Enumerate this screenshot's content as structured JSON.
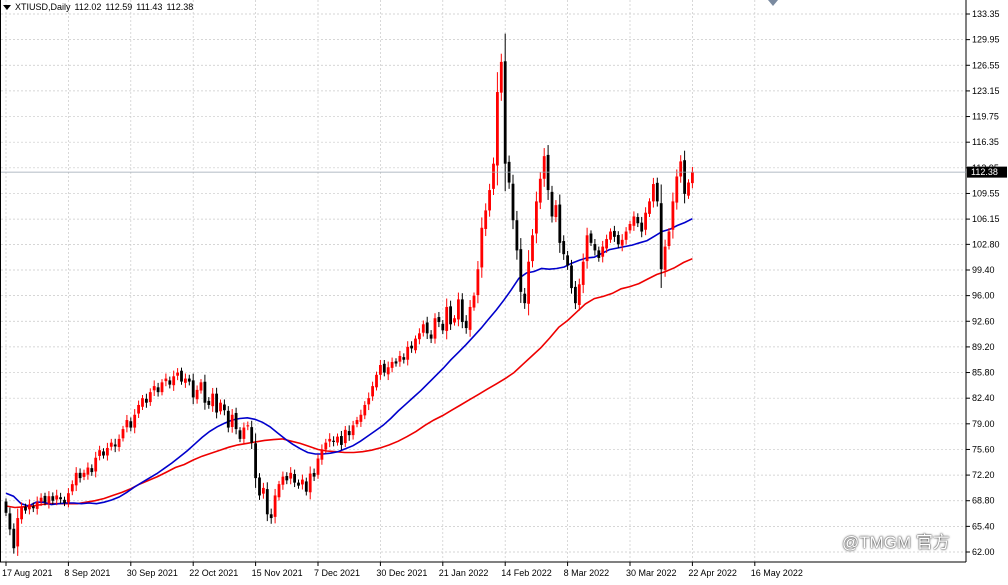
{
  "header": {
    "symbol": "XTIUSD,Daily",
    "ohlc": [
      "112.02",
      "112.59",
      "111.43",
      "112.38"
    ]
  },
  "watermark": "@TMGM 官方",
  "colors": {
    "bull": "#ff0000",
    "bear": "#000000",
    "ma_fast": "#0000cc",
    "ma_slow": "#ee0000",
    "grid": "#c8c8c8",
    "price_tag_bg": "#000000",
    "price_tag_text": "#ffffff"
  },
  "chart_data": {
    "type": "candlestick",
    "title": "XTIUSD,Daily",
    "current_price": 112.38,
    "y_ticks": [
      62.0,
      65.4,
      68.8,
      72.2,
      75.6,
      79.0,
      82.4,
      85.8,
      89.2,
      92.6,
      96.0,
      99.4,
      102.8,
      106.15,
      109.55,
      112.95,
      116.35,
      119.75,
      123.15,
      126.55,
      129.95,
      133.35
    ],
    "x_ticks": [
      {
        "label": "17 Aug 2021",
        "index": 0
      },
      {
        "label": "8 Sep 2021",
        "index": 16
      },
      {
        "label": "30 Sep 2021",
        "index": 32
      },
      {
        "label": "22 Oct 2021",
        "index": 48
      },
      {
        "label": "15 Nov 2021",
        "index": 64
      },
      {
        "label": "7 Dec 2021",
        "index": 80
      },
      {
        "label": "30 Dec 2021",
        "index": 96
      },
      {
        "label": "21 Jan 2022",
        "index": 112
      },
      {
        "label": "14 Feb 2022",
        "index": 128
      },
      {
        "label": "8 Mar 2022",
        "index": 144
      },
      {
        "label": "30 Mar 2022",
        "index": 160
      },
      {
        "label": "22 Apr 2022",
        "index": 176
      },
      {
        "label": "16 May 2022",
        "index": 192
      }
    ],
    "closes": [
      67.2,
      65.0,
      62.5,
      66.5,
      68.0,
      67.5,
      68.3,
      67.8,
      68.6,
      69.2,
      68.6,
      69.4,
      68.8,
      69.5,
      69.0,
      68.5,
      69.8,
      71.0,
      72.5,
      71.8,
      72.5,
      73.2,
      72.6,
      74.5,
      75.5,
      74.8,
      75.8,
      76.5,
      76.0,
      77.0,
      78.3,
      79.5,
      78.5,
      80.2,
      81.5,
      82.4,
      81.8,
      83.2,
      84.0,
      83.2,
      84.5,
      85.0,
      84.2,
      85.3,
      85.8,
      84.6,
      85.0,
      84.6,
      82.5,
      83.5,
      84.5,
      81.8,
      81.5,
      83.0,
      80.5,
      81.8,
      80.8,
      78.5,
      80.2,
      78.3,
      77.0,
      78.5,
      78.8,
      76.5,
      71.8,
      69.5,
      70.5,
      67.0,
      66.5,
      69.5,
      71.0,
      72.0,
      71.5,
      72.5,
      71.2,
      70.8,
      71.6,
      70.0,
      72.4,
      72.0,
      74.4,
      75.6,
      76.5,
      77.0,
      76.6,
      77.3,
      76.2,
      78.2,
      77.5,
      78.8,
      79.5,
      80.2,
      81.5,
      82.4,
      84.0,
      85.5,
      86.8,
      85.8,
      86.5,
      87.2,
      87.0,
      88.0,
      87.5,
      89.2,
      89.0,
      90.3,
      91.0,
      92.2,
      91.0,
      90.3,
      93.0,
      92.5,
      91.4,
      94.5,
      92.2,
      93.0,
      95.5,
      92.5,
      91.7,
      94.5,
      96.0,
      99.5,
      105.0,
      107.3,
      110.0,
      113.5,
      123.0,
      127.0,
      113.5,
      111.0,
      106.0,
      102.0,
      96.5,
      95.0,
      100.5,
      104.0,
      108.5,
      111.5,
      114.5,
      110.0,
      106.5,
      108.0,
      103.0,
      101.5,
      100.0,
      97.0,
      95.0,
      97.5,
      100.5,
      104.0,
      103.0,
      102.0,
      101.0,
      102.5,
      103.5,
      104.5,
      103.8,
      102.8,
      103.4,
      104.5,
      105.5,
      106.5,
      105.6,
      104.5,
      107.0,
      108.5,
      110.8,
      108.5,
      99.5,
      102.5,
      104.5,
      108.5,
      111.8,
      113.8,
      109.5,
      111.0,
      112.4
    ],
    "ma_fast": {
      "name": "",
      "values": [
        69.8,
        69.4,
        68.4,
        68.1,
        68.6,
        68.6,
        68.3,
        68.4,
        68.5,
        68.5,
        68.4,
        68.5,
        68.4,
        68.6,
        68.9,
        69.3,
        69.9,
        70.6,
        71.2,
        71.8,
        72.4,
        73.1,
        73.8,
        74.6,
        75.4,
        76.3,
        77.2,
        78.0,
        78.6,
        79.1,
        79.5,
        79.7,
        79.8,
        79.6,
        79.2,
        78.6,
        77.8,
        77.0,
        76.3,
        75.7,
        75.2,
        75.0,
        75.0,
        75.1,
        75.3,
        75.7,
        76.1,
        76.7,
        77.4,
        78.1,
        78.8,
        79.7,
        80.7,
        81.6,
        82.5,
        83.4,
        84.4,
        85.4,
        86.4,
        87.5,
        88.5,
        89.5,
        90.6,
        91.7,
        92.9,
        94.1,
        95.4,
        96.8,
        98.3,
        99.0,
        99.2,
        99.6,
        99.5,
        99.6,
        99.8,
        100.3,
        100.7,
        101.0,
        101.1,
        101.6,
        102.1,
        102.3,
        102.5,
        102.7,
        103.0,
        103.3,
        103.9,
        104.5,
        104.8,
        105.3,
        105.7,
        106.2
      ]
    },
    "ma_slow": {
      "name": "",
      "values": [
        68.1,
        67.9,
        68.0,
        68.1,
        68.3,
        68.4,
        68.4,
        68.4,
        68.4,
        68.6,
        68.8,
        69.1,
        69.5,
        69.9,
        70.4,
        71.0,
        71.5,
        72.0,
        72.6,
        73.2,
        73.6,
        74.2,
        74.7,
        75.1,
        75.5,
        75.9,
        76.2,
        76.4,
        76.6,
        76.8,
        76.9,
        77.0,
        76.7,
        76.4,
        76.0,
        75.6,
        75.4,
        75.3,
        75.2,
        75.2,
        75.3,
        75.5,
        75.8,
        76.2,
        76.7,
        77.3,
        78.0,
        78.8,
        79.5,
        80.1,
        80.8,
        81.5,
        82.2,
        82.9,
        83.6,
        84.3,
        85.0,
        85.8,
        86.9,
        88.0,
        89.1,
        90.4,
        91.8,
        92.7,
        93.8,
        94.9,
        95.6,
        95.9,
        96.3,
        96.9,
        97.2,
        97.6,
        98.2,
        98.8,
        99.2,
        99.7,
        100.4,
        100.9
      ]
    }
  }
}
